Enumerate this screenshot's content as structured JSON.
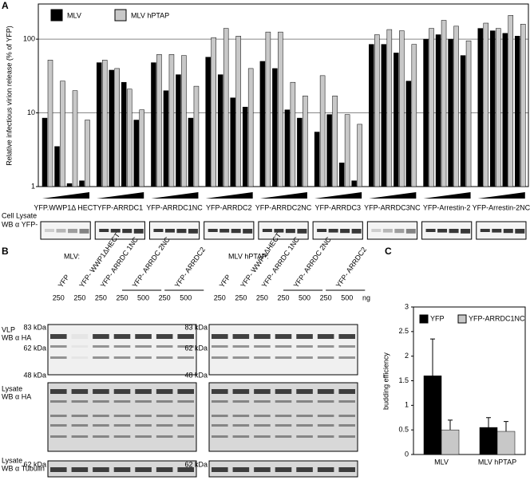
{
  "chart_data": [
    {
      "type": "bar",
      "label": "A",
      "log_y": true,
      "ylabel": "Relative infectious virion release (% of YFP)",
      "categories": [
        "YFP.WWP1Δ HECT",
        "YFP-ARRDC1",
        "YFP-ARRDC1NC",
        "YFP-ARRDC2",
        "YFP-ARRDC2NC",
        "YFP-ARRDC3",
        "YFP-ARRDC3NC",
        "YFP-Arrestin-2",
        "YFP-Arrestin-2NC"
      ],
      "series": [
        {
          "name": "MLV",
          "color": "#000000",
          "values": [
            [
              8.5,
              3.5,
              1.1,
              1.2
            ],
            [
              48,
              38,
              26,
              8
            ],
            [
              48,
              20,
              33,
              8.5
            ],
            [
              57,
              33,
              16,
              12
            ],
            [
              50,
              40,
              11,
              8.5
            ],
            [
              5.5,
              9.5,
              2.1,
              1.2
            ],
            [
              85,
              85,
              65,
              27
            ],
            [
              100,
              115,
              100,
              60
            ],
            [
              140,
              130,
              120,
              110
            ]
          ]
        },
        {
          "name": "MLV hPTAP",
          "color": "#c8c8c8",
          "values": [
            [
              52,
              27,
              20,
              8
            ],
            [
              52,
              40,
              21,
              11
            ],
            [
              62,
              62,
              60,
              23
            ],
            [
              105,
              140,
              110,
              40
            ],
            [
              125,
              125,
              26,
              17
            ],
            [
              32,
              17,
              9.5,
              7
            ],
            [
              115,
              135,
              130,
              85
            ],
            [
              140,
              180,
              150,
              95
            ],
            [
              165,
              140,
              210,
              160
            ]
          ]
        }
      ],
      "ylim": [
        1,
        300
      ],
      "yticks": [
        1,
        10,
        100
      ],
      "grid": true,
      "lysate_label": [
        "Cell Lysate",
        "WB α YFP-"
      ]
    },
    {
      "type": "bar",
      "label": "C",
      "ylabel": "budding efficiency",
      "categories": [
        "MLV",
        "MLV hPTAP"
      ],
      "series": [
        {
          "name": "YFP",
          "color": "#000000",
          "values": [
            1.6,
            0.55
          ],
          "errors": [
            0.75,
            0.2
          ]
        },
        {
          "name": "YFP-ARRDC1NC",
          "color": "#c8c8c8",
          "values": [
            0.5,
            0.47
          ],
          "errors": [
            0.2,
            0.2
          ]
        }
      ],
      "ylim": [
        0,
        3
      ],
      "yticks": [
        0,
        0.5,
        1,
        1.5,
        2,
        2.5,
        3
      ],
      "grid": false
    }
  ],
  "blots": {
    "label": "B",
    "titles": [
      "MLV:",
      "MLV hPTAP:"
    ],
    "lanes": [
      "YFP",
      "YFP- WWP1ΔHECT",
      "YFP- ARRDC 1NC",
      "YFP- ARRDC 2NC",
      "YFP- ARRDC2"
    ],
    "amounts": [
      "250",
      "250",
      "250",
      "250",
      "500",
      "250",
      "500"
    ],
    "unit": "ng",
    "rows": [
      [
        "VLP",
        "WB α HA"
      ],
      [
        "Lysate",
        "WB α HA"
      ],
      [
        "Lysate",
        "WB α Tubulin"
      ]
    ],
    "markers": [
      "83 kDa",
      "62 kDa",
      "48 kDa",
      "62 kDa"
    ]
  }
}
